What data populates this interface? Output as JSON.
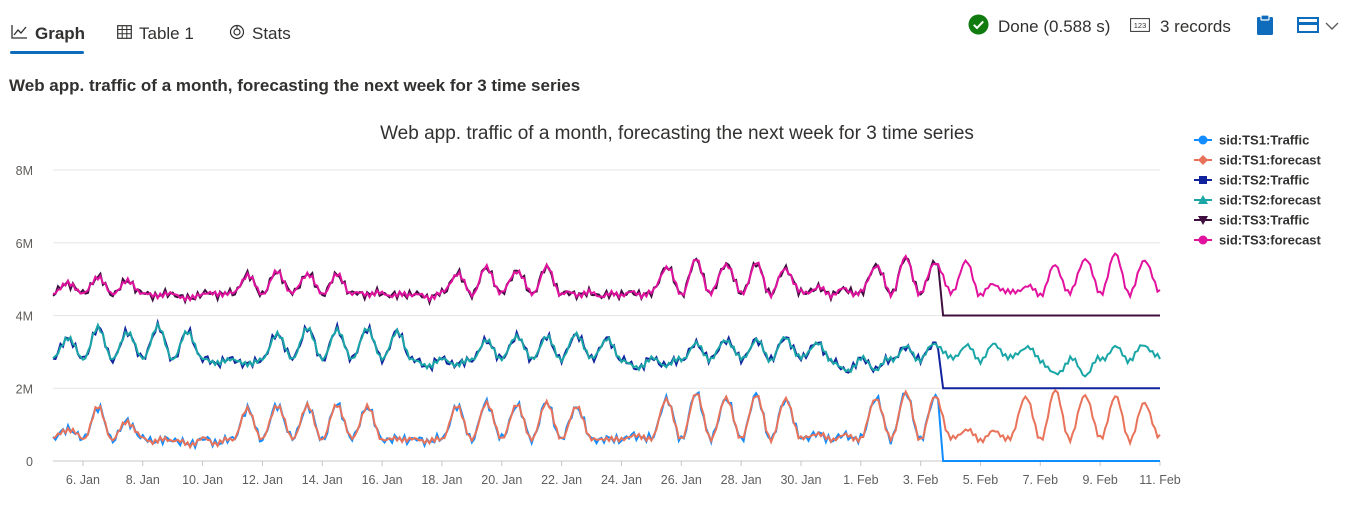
{
  "tabs": [
    {
      "label": "Graph",
      "icon": "line-chart-icon",
      "active": true
    },
    {
      "label": "Table 1",
      "icon": "table-icon",
      "active": false
    },
    {
      "label": "Stats",
      "icon": "stats-icon",
      "active": false
    }
  ],
  "status": {
    "text": "Done (0.588 s)",
    "icon": "check-circle-icon",
    "color": "#107c10"
  },
  "records": {
    "text": "3 records",
    "icon": "records-123-icon"
  },
  "toolbar": {
    "clipboard_icon": "clipboard-icon",
    "layout_icon": "layout-icon",
    "chevron_icon": "chevron-down-icon",
    "accent": "#0f6cbd"
  },
  "subtitle": "Web app. traffic of a month, forecasting the next week for 3 time series",
  "chart_data": {
    "type": "line",
    "title": "Web app. traffic of a month, forecasting the next week for 3 time series",
    "xlabel": "",
    "ylabel": "",
    "ylim": [
      0,
      8000000
    ],
    "yticks": [
      "0",
      "2M",
      "4M",
      "6M",
      "8M"
    ],
    "ytick_values": [
      0,
      2000000,
      4000000,
      6000000,
      8000000
    ],
    "xticks": [
      "6. Jan",
      "8. Jan",
      "10. Jan",
      "12. Jan",
      "14. Jan",
      "16. Jan",
      "18. Jan",
      "20. Jan",
      "22. Jan",
      "24. Jan",
      "26. Jan",
      "28. Jan",
      "30. Jan",
      "1. Feb",
      "3. Feb",
      "5. Feb",
      "7. Feb",
      "9. Feb",
      "11. Feb"
    ],
    "xtick_days": [
      6,
      8,
      10,
      12,
      14,
      16,
      18,
      20,
      22,
      24,
      26,
      28,
      30,
      32,
      34,
      36,
      38,
      40,
      42
    ],
    "x_range_days": [
      5,
      42
    ],
    "grid": "horizontal",
    "legend_position": "right",
    "series": [
      {
        "name": "sid:TS1:Traffic",
        "color": "#118dff",
        "marker": "circle"
      },
      {
        "name": "sid:TS1:forecast",
        "color": "#e8735a",
        "marker": "diamond"
      },
      {
        "name": "sid:TS2:Traffic",
        "color": "#12239e",
        "marker": "square"
      },
      {
        "name": "sid:TS2:forecast",
        "color": "#1aa6a6",
        "marker": "triangle"
      },
      {
        "name": "sid:TS3:Traffic",
        "color": "#3f0f3f",
        "marker": "triangle-down"
      },
      {
        "name": "sid:TS3:forecast",
        "color": "#e1129e",
        "marker": "circle"
      }
    ],
    "daily_levels_ts1": [
      0.9,
      1.45,
      1.1,
      0.55,
      0.45,
      0.5,
      1.4,
      1.55,
      1.5,
      1.55,
      1.5,
      0.6,
      0.55,
      1.5,
      1.6,
      1.55,
      1.6,
      1.5,
      0.6,
      0.7,
      1.7,
      1.85,
      1.75,
      1.8,
      1.7,
      0.75,
      0.7,
      1.75,
      1.85,
      1.8,
      0.85,
      0.8,
      1.8,
      1.9,
      1.85,
      1.75,
      1.6
    ],
    "daily_levels_ts2": [
      3.4,
      3.65,
      3.55,
      3.7,
      3.55,
      2.7,
      2.65,
      3.5,
      3.65,
      3.6,
      3.65,
      3.55,
      2.6,
      2.65,
      3.3,
      3.45,
      3.4,
      3.5,
      3.35,
      2.55,
      2.65,
      3.2,
      3.35,
      3.3,
      3.4,
      3.25,
      2.45,
      2.55,
      3.1,
      3.25,
      3.15,
      3.2,
      3.15,
      2.35,
      2.4,
      3.1,
      3.2
    ],
    "daily_levels_ts3": [
      4.9,
      5.05,
      4.95,
      4.55,
      4.45,
      4.6,
      5.1,
      5.2,
      5.15,
      5.1,
      4.6,
      4.55,
      4.5,
      5.15,
      5.3,
      5.25,
      5.3,
      4.6,
      4.55,
      4.6,
      5.35,
      5.5,
      5.45,
      5.4,
      5.3,
      4.75,
      4.7,
      5.4,
      5.55,
      5.5,
      5.45,
      4.85,
      4.8,
      5.35,
      5.6,
      5.65,
      5.55
    ],
    "cutoff_day": 34.6,
    "flat_after_cutoff": {
      "sid:TS1:Traffic": 0,
      "sid:TS2:Traffic": 2000000,
      "sid:TS3:Traffic": 4000000
    }
  }
}
